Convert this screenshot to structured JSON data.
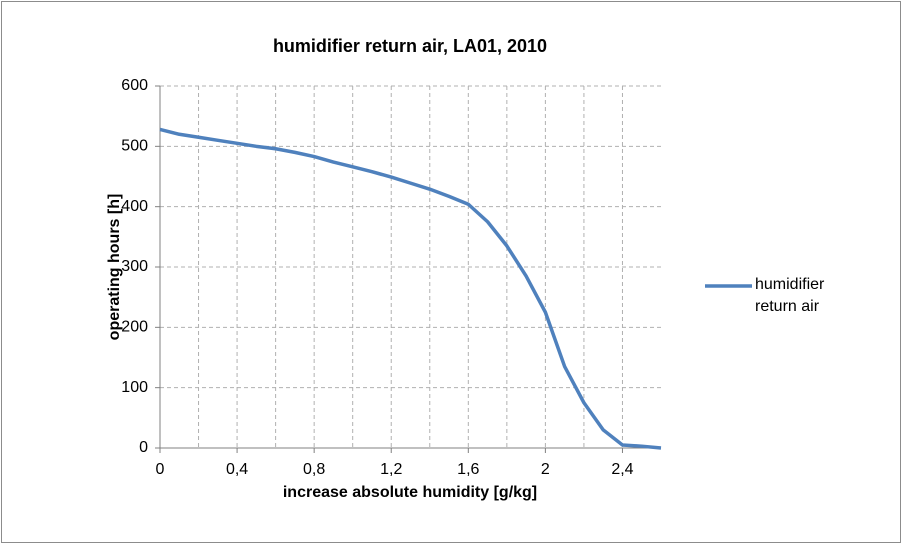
{
  "chart_data": {
    "type": "line",
    "title": "humidifier return air, LA01, 2010",
    "xlabel": "increase absolute humidity [g/kg]",
    "ylabel": "operating hours  [h]",
    "x": [
      0,
      0.1,
      0.2,
      0.3,
      0.4,
      0.5,
      0.6,
      0.7,
      0.8,
      0.9,
      1.0,
      1.1,
      1.2,
      1.3,
      1.4,
      1.5,
      1.6,
      1.7,
      1.8,
      1.9,
      2.0,
      2.1,
      2.2,
      2.3,
      2.4,
      2.5,
      2.6
    ],
    "series": [
      {
        "name": "humidifier return air",
        "color": "#4f81bd",
        "values": [
          528,
          520,
          515,
          510,
          505,
          500,
          496,
          490,
          483,
          474,
          466,
          458,
          449,
          439,
          429,
          417,
          404,
          375,
          335,
          285,
          225,
          135,
          75,
          30,
          5,
          3,
          0
        ]
      }
    ],
    "xlim": [
      0,
      2.6
    ],
    "xticks": [
      0,
      {
        "value": 0.4,
        "label": "0,4"
      },
      {
        "value": 0.8,
        "label": "0,8"
      },
      {
        "value": 1.2,
        "label": "1,2"
      },
      {
        "value": 1.6,
        "label": "1,6"
      },
      2,
      {
        "value": 2.4,
        "label": "2,4"
      }
    ],
    "x_minor_gridlines": [
      0.2,
      0.6,
      1.0,
      1.4,
      1.8,
      2.2
    ],
    "ylim": [
      0,
      600
    ],
    "yticks": [
      0,
      100,
      200,
      300,
      400,
      500,
      600
    ],
    "grid": true,
    "legend": "right"
  }
}
